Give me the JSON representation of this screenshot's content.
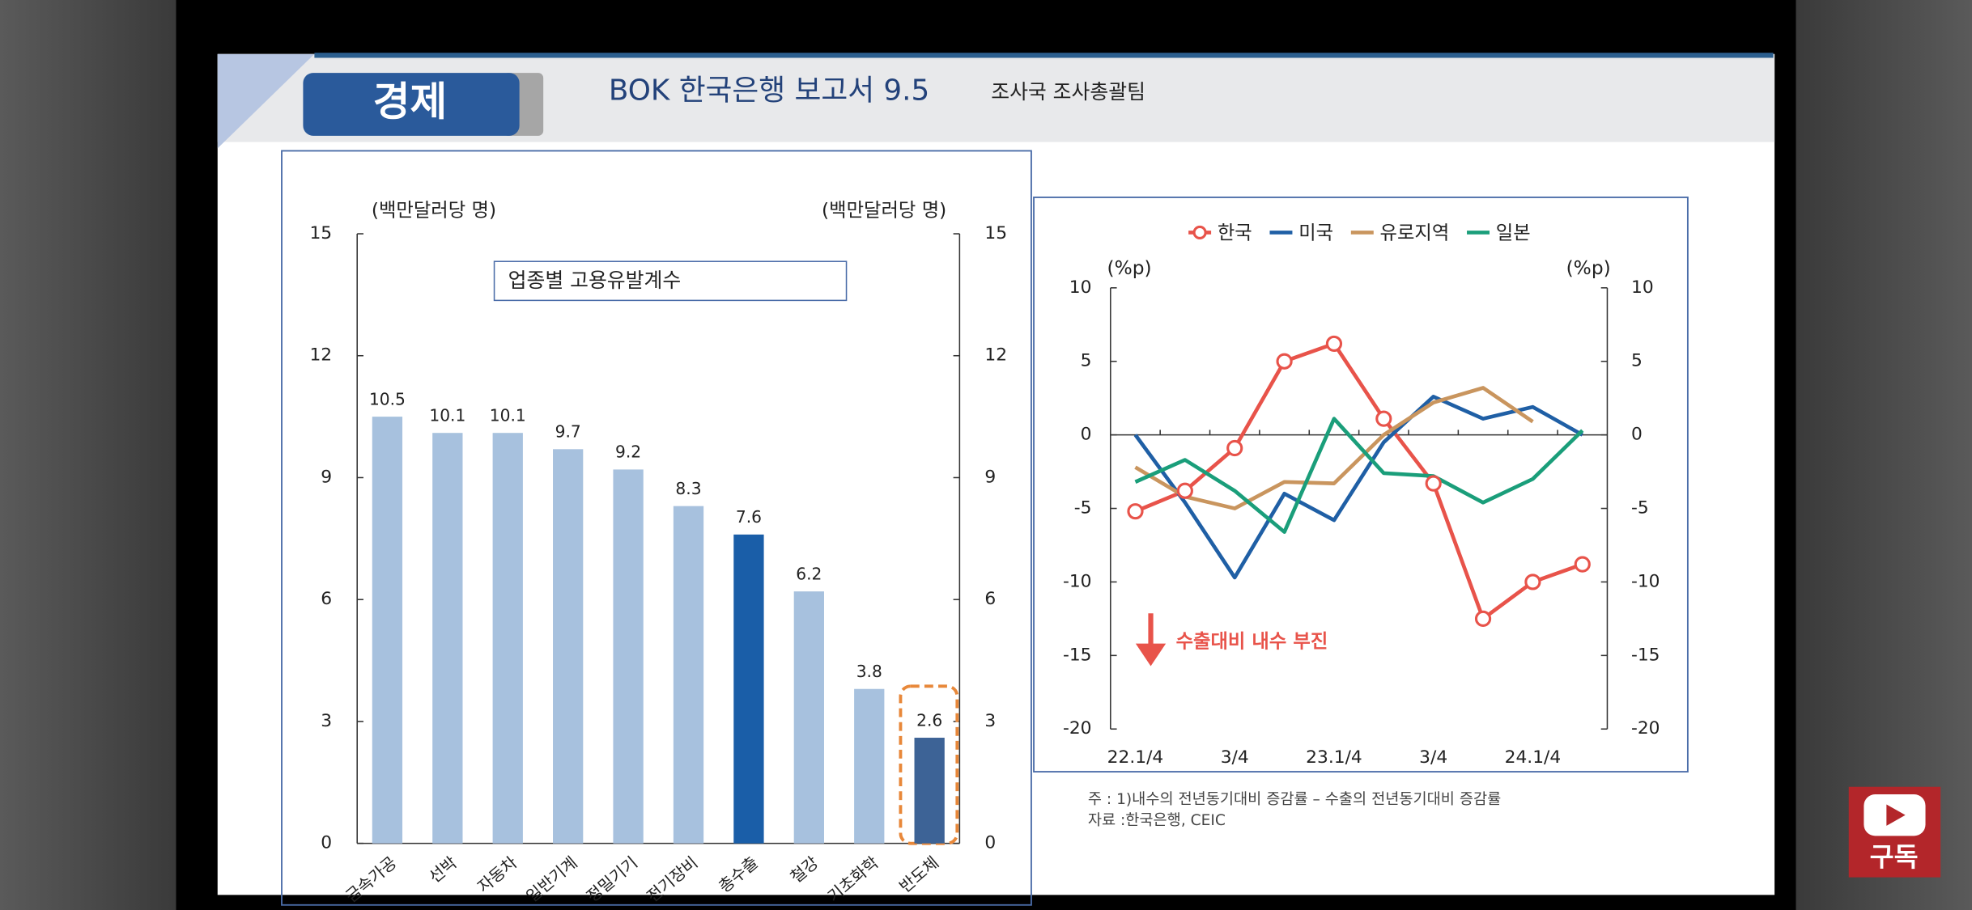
{
  "header": {
    "badge": "경제",
    "title": "BOK 한국은행 보고서 9.5",
    "subtitle": "조사국 조사총괄팀"
  },
  "chart_data": [
    {
      "type": "bar",
      "title": "업종별 고용유발계수",
      "ylabel": "(백만달러당 명)",
      "y2label": "(백만달러당 명)",
      "categories": [
        "금속가공",
        "선박",
        "자동차",
        "일반기계",
        "정밀기기",
        "전기장비",
        "총수출",
        "철강",
        "기초화학",
        "반도체"
      ],
      "values": [
        10.5,
        10.1,
        10.1,
        9.7,
        9.2,
        8.3,
        7.6,
        6.2,
        3.8,
        2.6
      ],
      "colors": [
        "#a7c1de",
        "#a7c1de",
        "#a7c1de",
        "#a7c1de",
        "#a7c1de",
        "#a7c1de",
        "#1a5ea8",
        "#a7c1de",
        "#a7c1de",
        "#3d6396"
      ],
      "ylim": [
        0,
        15
      ],
      "yticks": [
        0,
        3,
        6,
        9,
        12,
        15
      ],
      "y2lim": [
        0,
        15
      ],
      "y2ticks": [
        0,
        3,
        6,
        9,
        12,
        15
      ],
      "grid": false
    },
    {
      "type": "line",
      "ylabel": "(%p)",
      "y2label": "(%p)",
      "annotation": "수출대비 내수 부진",
      "categories": [
        "22.1/4",
        null,
        "3/4",
        null,
        "23.1/4",
        null,
        "3/4",
        null,
        "24.1/4",
        null
      ],
      "series": [
        {
          "name": "한국",
          "color": "#e8534a",
          "marker": "circle",
          "values": [
            -5.2,
            -3.8,
            -0.9,
            5.0,
            6.2,
            1.1,
            -3.3,
            -12.5,
            -10.0,
            -8.8
          ]
        },
        {
          "name": "미국",
          "color": "#1f5fa5",
          "values": [
            0,
            -4.6,
            -9.7,
            -4.0,
            -5.8,
            -0.5,
            2.6,
            1.1,
            1.9,
            0
          ]
        },
        {
          "name": "유로지역",
          "color": "#c9955e",
          "values": [
            -2.2,
            -4.2,
            -5.0,
            -3.2,
            -3.3,
            0,
            2.2,
            3.2,
            0.9,
            null
          ]
        },
        {
          "name": "일본",
          "color": "#1a9e7a",
          "values": [
            -3.2,
            -1.7,
            -3.8,
            -6.6,
            1.1,
            -2.6,
            -2.8,
            -4.6,
            -3.0,
            0.3
          ]
        }
      ],
      "ylim": [
        -20,
        10
      ],
      "yticks": [
        -20,
        -15,
        -10,
        -5,
        0,
        5,
        10
      ],
      "y2lim": [
        -20,
        10
      ],
      "y2ticks": [
        -20,
        -15,
        -10,
        -5,
        0,
        5,
        10
      ],
      "grid": false
    }
  ],
  "notes": [
    "주 : 1)내수의 전년동기대비 증감률 – 수출의 전년동기대비 증감률",
    "자료 :한국은행, CEIC"
  ],
  "subscribe": "구독"
}
